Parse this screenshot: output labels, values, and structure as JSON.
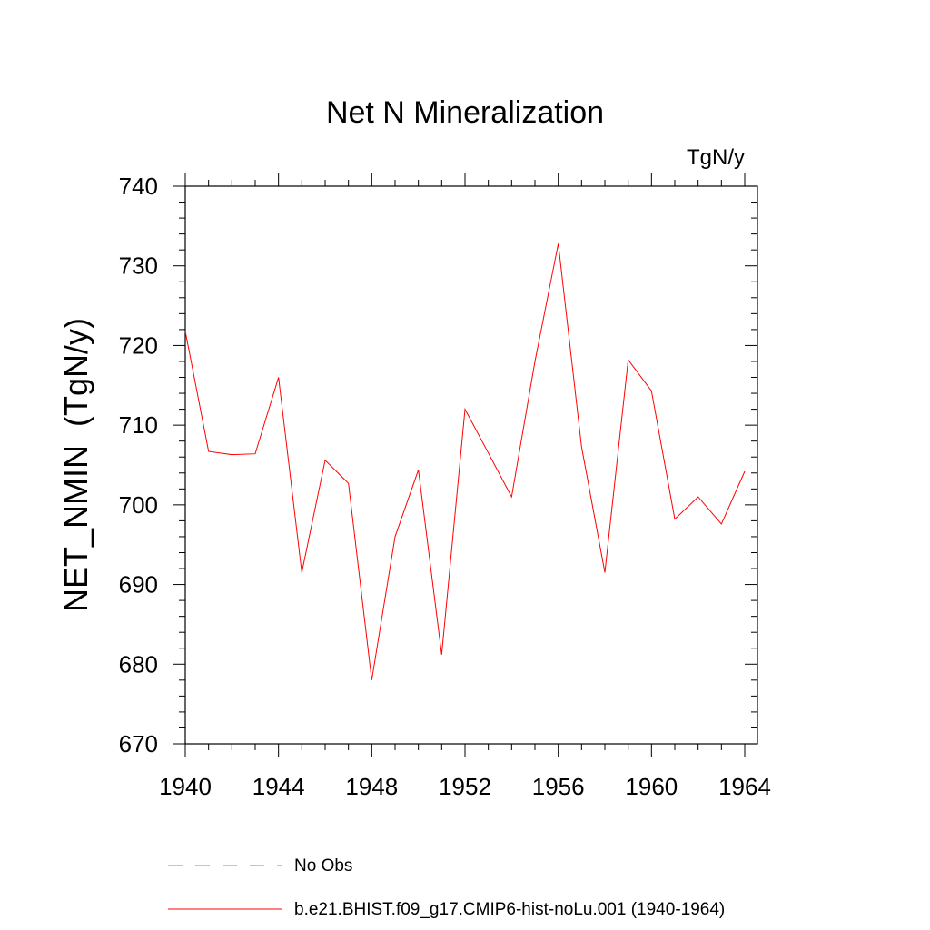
{
  "chart_data": {
    "type": "line",
    "title": "Net N Mineralization",
    "units_label": "TgN/y",
    "ylabel": "NET_NMIN  (TgN/y)",
    "xlabel": "",
    "xlim": [
      1940,
      1964
    ],
    "ylim": [
      670,
      740
    ],
    "x_ticks": [
      1940,
      1944,
      1948,
      1952,
      1956,
      1960,
      1964
    ],
    "y_ticks": [
      670,
      680,
      690,
      700,
      710,
      720,
      730,
      740
    ],
    "grid": false,
    "series": [
      {
        "name": "b.e21.BHIST.f09_g17.CMIP6-hist-noLu.001 (1940-1964)",
        "color": "#ff0000",
        "style": "solid",
        "x": [
          1940,
          1941,
          1942,
          1943,
          1944,
          1945,
          1946,
          1947,
          1948,
          1949,
          1950,
          1951,
          1952,
          1953,
          1954,
          1955,
          1956,
          1957,
          1958,
          1959,
          1960,
          1961,
          1962,
          1963,
          1964
        ],
        "values": [
          721.8,
          706.7,
          706.3,
          706.4,
          716.0,
          691.5,
          705.6,
          702.7,
          678.0,
          696.0,
          704.4,
          681.2,
          712.0,
          706.5,
          701.0,
          718.0,
          732.8,
          707.3,
          691.5,
          718.2,
          714.3,
          698.2,
          701.0,
          697.6,
          704.2
        ]
      }
    ],
    "legend": [
      {
        "label": "No Obs",
        "color": "#8080c0",
        "style": "dashed"
      },
      {
        "label": "b.e21.BHIST.f09_g17.CMIP6-hist-noLu.001 (1940-1964)",
        "color": "#ff0000",
        "style": "solid"
      }
    ]
  }
}
